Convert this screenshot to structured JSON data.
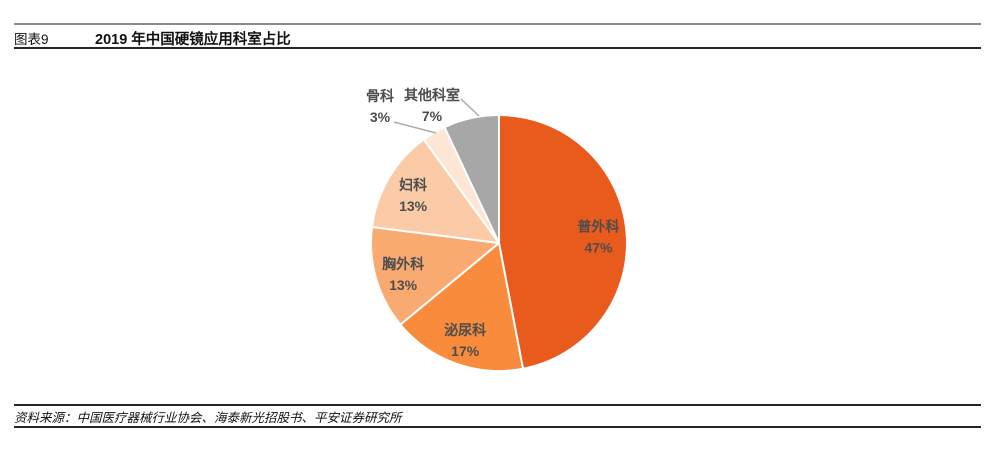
{
  "header": {
    "figure_label": "图表9",
    "title": "2019 年中国硬镜应用科室占比"
  },
  "footer": {
    "source_text": "资料来源：中国医疗器械行业协会、海泰新光招股书、平安证券研究所"
  },
  "colors": {
    "slice_label_text": "#4D4D4D",
    "leader_line": "#ABABAB",
    "slice_separator": "#FFFFFF",
    "header_rule": "#262626",
    "top_rule": "#8A8A8A"
  },
  "chart_data": {
    "type": "pie",
    "title": "2019 年中国硬镜应用科室占比",
    "start_angle_deg": 0,
    "direction": "clockwise",
    "legend_position": "none",
    "slices": [
      {
        "name": "general-surgery",
        "label": "普外科",
        "value": 47,
        "unit": "%",
        "color": "#E95A1D",
        "label_placement": "inside"
      },
      {
        "name": "urology",
        "label": "泌尿科",
        "value": 17,
        "unit": "%",
        "color": "#F98B3C",
        "label_placement": "inside"
      },
      {
        "name": "thoracic-surgery",
        "label": "胸外科",
        "value": 13,
        "unit": "%",
        "color": "#F9AA71",
        "label_placement": "inside"
      },
      {
        "name": "gynecology",
        "label": "妇科",
        "value": 13,
        "unit": "%",
        "color": "#FBCBA8",
        "label_placement": "inside"
      },
      {
        "name": "orthopedics",
        "label": "骨科",
        "value": 3,
        "unit": "%",
        "color": "#FDE6D5",
        "label_placement": "outside",
        "label_pos": [
          50,
          31
        ],
        "leader": [
          [
            64,
            52
          ],
          [
            106,
            63
          ]
        ]
      },
      {
        "name": "other-departments",
        "label": "其他科室",
        "value": 7,
        "unit": "%",
        "color": "#A7A7A7",
        "label_placement": "outside",
        "label_pos": [
          102,
          30
        ],
        "leader": [
          [
            131,
            29
          ],
          [
            149,
            46
          ]
        ]
      }
    ]
  }
}
